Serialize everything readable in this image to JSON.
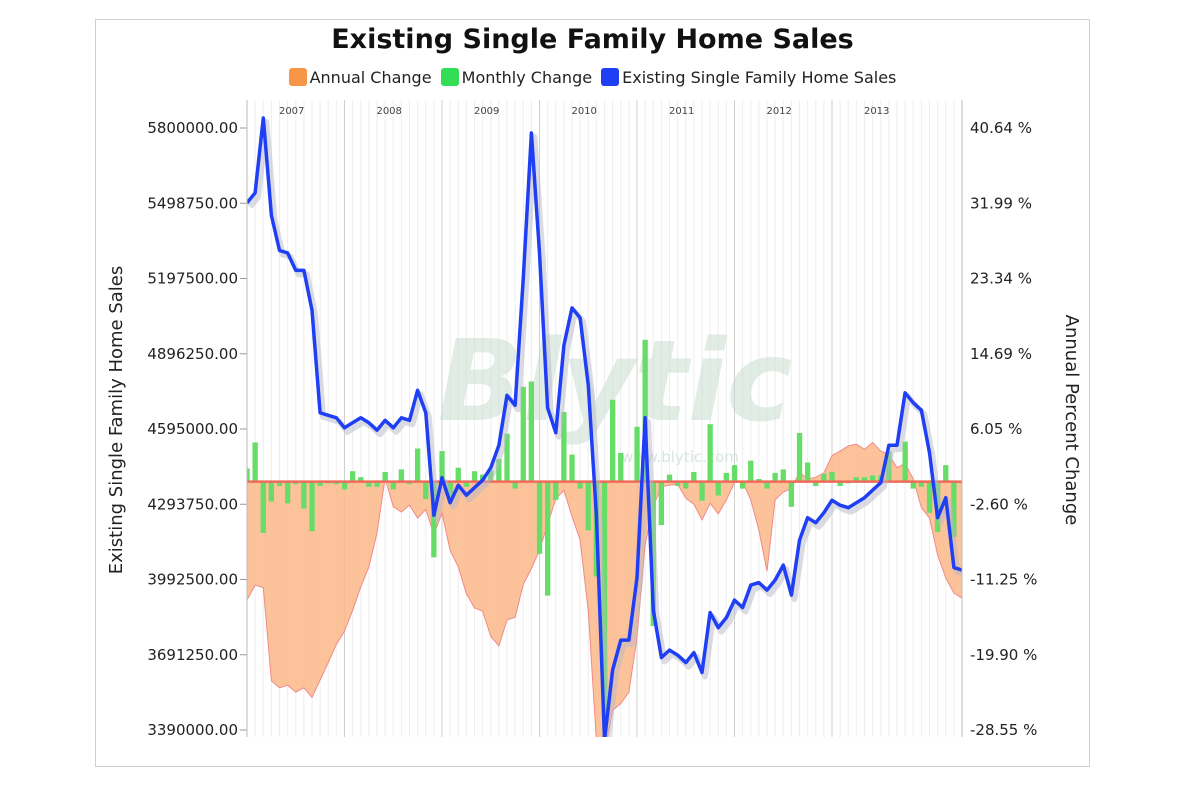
{
  "chart_data": {
    "type": "line",
    "title": "Existing Single Family Home Sales",
    "legend_placement": "top",
    "legend": [
      {
        "label": "Annual Change",
        "color": "#f79646"
      },
      {
        "label": "Monthly Change",
        "color": "#33dd55"
      },
      {
        "label": "Existing Single Family Home Sales",
        "color": "#1f3ff5"
      }
    ],
    "ylabel_left": "Existing Single Family Home Sales",
    "ylabel_right": "Annual Percent Change",
    "yticks_left": [
      "5800000.00",
      "5498750.00",
      "5197500.00",
      "4896250.00",
      "4595000.00",
      "4293750.00",
      "3992500.00",
      "3691250.00",
      "3390000.00"
    ],
    "yticks_right": [
      "40.64 %",
      "31.99 %",
      "23.34 %",
      "14.69 %",
      "6.05 %",
      "-2.60 %",
      "-11.25 %",
      "-19.90 %",
      "-28.55 %"
    ],
    "ylim_left": [
      3390000,
      5800000
    ],
    "ylim_right": [
      -28.55,
      40.64
    ],
    "year_labels": [
      "2007",
      "2008",
      "2009",
      "2010",
      "2011",
      "2012",
      "2013"
    ],
    "x_start": "2007-01",
    "x_end": "2013-09",
    "grid": true,
    "watermark": "Blytic",
    "watermark_url": "www.blytic.com",
    "series": [
      {
        "name": "Existing Single Family Home Sales",
        "color": "#1f3ff5",
        "values": [
          5500000,
          5540000,
          5840000,
          5450000,
          5310000,
          5300000,
          5230000,
          5230000,
          5070000,
          4660000,
          4650000,
          4640000,
          4600000,
          4620000,
          4640000,
          4620000,
          4590000,
          4630000,
          4600000,
          4640000,
          4630000,
          4750000,
          4660000,
          4250000,
          4400000,
          4300000,
          4370000,
          4330000,
          4360000,
          4390000,
          4440000,
          4530000,
          4730000,
          4690000,
          5200000,
          5780000,
          5300000,
          4680000,
          4580000,
          4930000,
          5080000,
          5040000,
          4770000,
          4250000,
          3350000,
          3630000,
          3750000,
          3750000,
          4000000,
          4640000,
          3870000,
          3680000,
          3710000,
          3690000,
          3660000,
          3700000,
          3620000,
          3860000,
          3800000,
          3840000,
          3910000,
          3880000,
          3970000,
          3980000,
          3950000,
          3990000,
          4050000,
          3930000,
          4150000,
          4240000,
          4220000,
          4260000,
          4310000,
          4290000,
          4280000,
          4300000,
          4320000,
          4350000,
          4380000,
          4530000,
          4530000,
          4740000,
          4700000,
          4670000,
          4500000,
          4240000,
          4320000,
          4040000,
          4030000
        ]
      },
      {
        "name": "Annual Change",
        "color": "#f79646",
        "values": [
          -13.6,
          -11.9,
          -12.2,
          -22.9,
          -23.7,
          -23.4,
          -24.2,
          -23.7,
          -24.8,
          -22.8,
          -20.8,
          -18.7,
          -17.2,
          -14.8,
          -12.1,
          -9.8,
          -5.9,
          0.4,
          -2.9,
          -3.5,
          -2.7,
          -4.2,
          -3.2,
          -6.1,
          -3.6,
          -7.9,
          -9.8,
          -12.9,
          -14.5,
          -14.9,
          -17.8,
          -18.9,
          -15.9,
          -15.6,
          -11.8,
          -10.0,
          -7.9,
          -4.9,
          -2.0,
          -1.0,
          -4.0,
          -6.7,
          -14.9,
          -29.8,
          -31.2,
          -26.3,
          -25.5,
          -24.2,
          -17.9,
          -7.3,
          -2.8,
          -0.6,
          -0.4,
          -0.3,
          -1.9,
          -2.6,
          -4.4,
          -2.5,
          -3.7,
          -2.1,
          -0.1,
          0.0,
          -2.1,
          -5.6,
          -10.3,
          -2.1,
          -1.2,
          -0.8,
          1.1,
          0.3,
          0.5,
          1.0,
          3.0,
          3.5,
          4.1,
          4.3,
          3.7,
          4.5,
          3.5,
          3.1,
          1.6,
          2.1,
          0.3,
          -3.0,
          -4.2,
          -8.4,
          -11.1,
          -12.8,
          -13.4
        ]
      },
      {
        "name": "Monthly Change",
        "color": "#33dd55",
        "values": [
          1.5,
          4.5,
          -5.9,
          -2.3,
          -0.5,
          -2.5,
          -0.3,
          -3.1,
          -5.7,
          -0.5,
          -0.2,
          -0.3,
          -0.9,
          1.2,
          0.5,
          -0.6,
          -0.6,
          1.1,
          -0.9,
          1.4,
          -0.3,
          3.8,
          -2.0,
          -8.7,
          3.5,
          -2.3,
          1.6,
          -0.6,
          1.2,
          0.8,
          1.3,
          2.6,
          5.5,
          -0.8,
          10.9,
          11.5,
          -8.3,
          -13.1,
          -2.1,
          8.0,
          3.1,
          -0.8,
          -5.6,
          -10.9,
          -26.7,
          9.4,
          3.3,
          0.0,
          6.3,
          16.3,
          -16.6,
          -5.0,
          0.8,
          -0.5,
          -0.8,
          1.1,
          -2.2,
          6.6,
          -1.6,
          1.0,
          1.9,
          -0.8,
          2.4,
          0.3,
          -0.8,
          1.0,
          1.4,
          -2.9,
          5.6,
          2.2,
          -0.5,
          0.9,
          1.1,
          -0.5,
          -0.2,
          0.5,
          0.5,
          0.7,
          0.7,
          3.5,
          0.0,
          4.6,
          -0.8,
          -0.6,
          -3.6,
          -5.8,
          1.9,
          -6.4,
          -0.2
        ]
      }
    ]
  }
}
